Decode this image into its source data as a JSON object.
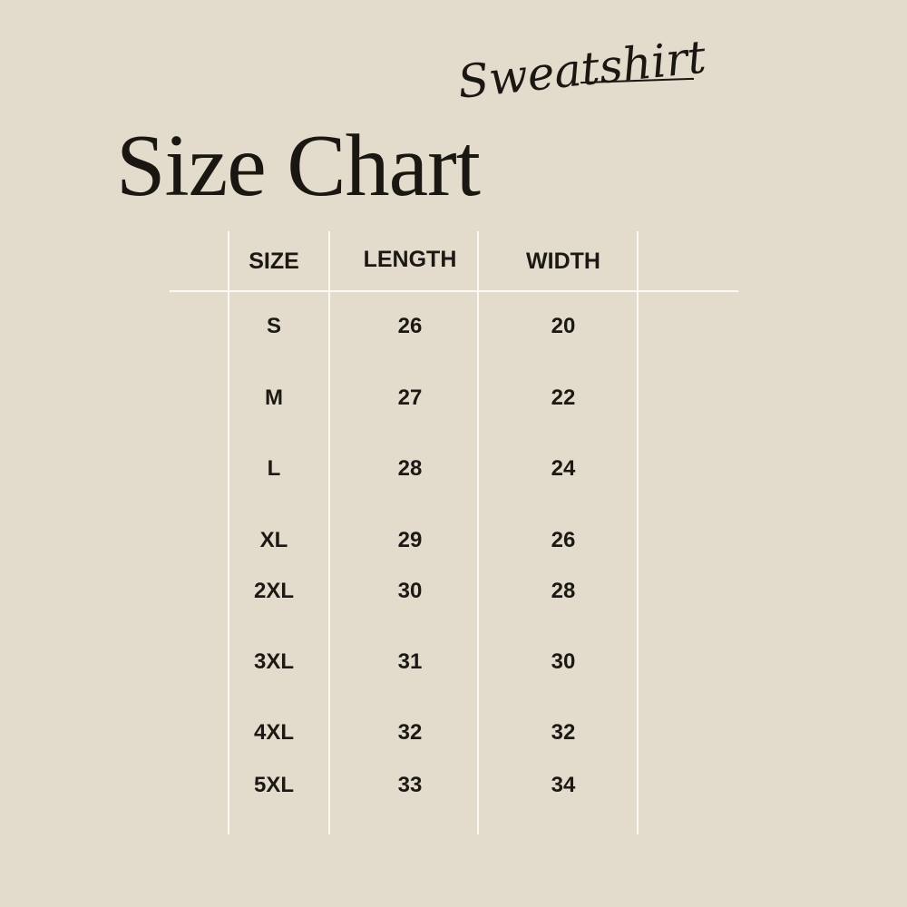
{
  "title": "Size Chart",
  "subtitle_script": "Sweatshirt",
  "colors": {
    "background": "#e3dbcb",
    "text": "#1c1915",
    "lines": "#fbf9f4"
  },
  "table": {
    "headers": [
      "SIZE",
      "LENGTH",
      "WIDTH"
    ],
    "rows": [
      {
        "size": "S",
        "length": "26",
        "width": "20"
      },
      {
        "size": "M",
        "length": "27",
        "width": "22"
      },
      {
        "size": "L",
        "length": "28",
        "width": "24"
      },
      {
        "size": "XL",
        "length": "29",
        "width": "26"
      },
      {
        "size": "2XL",
        "length": "30",
        "width": "28"
      },
      {
        "size": "3XL",
        "length": "31",
        "width": "30"
      },
      {
        "size": "4XL",
        "length": "32",
        "width": "32"
      },
      {
        "size": "5XL",
        "length": "33",
        "width": "34"
      }
    ]
  }
}
